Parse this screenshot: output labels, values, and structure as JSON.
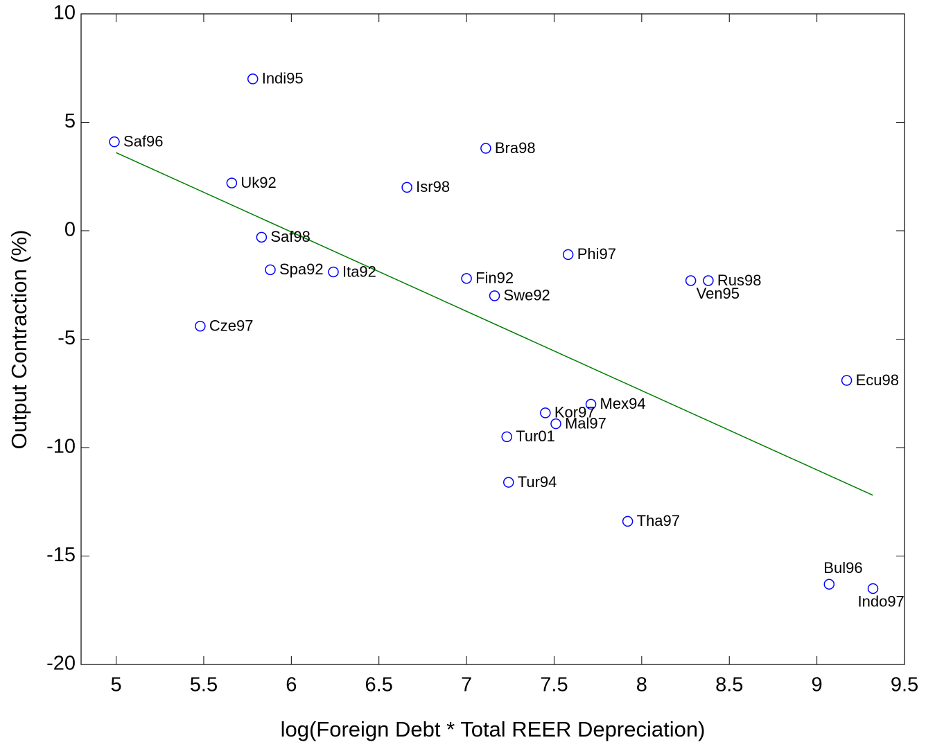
{
  "chart_data": {
    "type": "scatter",
    "xlabel": "log(Foreign Debt * Total REER Depreciation)",
    "ylabel": "Output Contraction (%)",
    "xlim": [
      4.8,
      9.5
    ],
    "ylim": [
      -20,
      10
    ],
    "xticks": [
      5,
      5.5,
      6,
      6.5,
      7,
      7.5,
      8,
      8.5,
      9,
      9.5
    ],
    "yticks": [
      -20,
      -15,
      -10,
      -5,
      0,
      5,
      10
    ],
    "series": [
      {
        "color": "#0000ff",
        "labels": [
          "Saf96",
          "Indi95",
          "Uk92",
          "Saf98",
          "Spa92",
          "Ita92",
          "Cze97",
          "Isr98",
          "Bra98",
          "Fin92",
          "Swe92",
          "Phi97",
          "Ven95",
          "Rus98",
          "Ecu98",
          "Mex94",
          "Kor97",
          "Mal97",
          "Tur01",
          "Tur94",
          "Tha97",
          "Bul96",
          "Indo97"
        ],
        "x": [
          4.99,
          5.78,
          5.66,
          5.83,
          5.88,
          6.24,
          5.48,
          6.66,
          7.11,
          7.0,
          7.16,
          7.58,
          8.28,
          8.38,
          9.17,
          7.71,
          7.45,
          7.51,
          7.23,
          7.24,
          7.92,
          9.07,
          9.32
        ],
        "values": [
          4.1,
          7.0,
          2.2,
          -0.3,
          -1.8,
          -1.9,
          -4.4,
          2.0,
          3.8,
          -2.2,
          -3.0,
          -1.1,
          -2.3,
          -2.3,
          -6.9,
          -8.0,
          -8.4,
          -8.9,
          -9.5,
          -11.6,
          -13.4,
          -16.3,
          -16.5
        ]
      }
    ],
    "fit_line": {
      "color": "#007f00",
      "x": [
        5.0,
        9.32
      ],
      "values": [
        3.6,
        -12.2
      ]
    }
  }
}
